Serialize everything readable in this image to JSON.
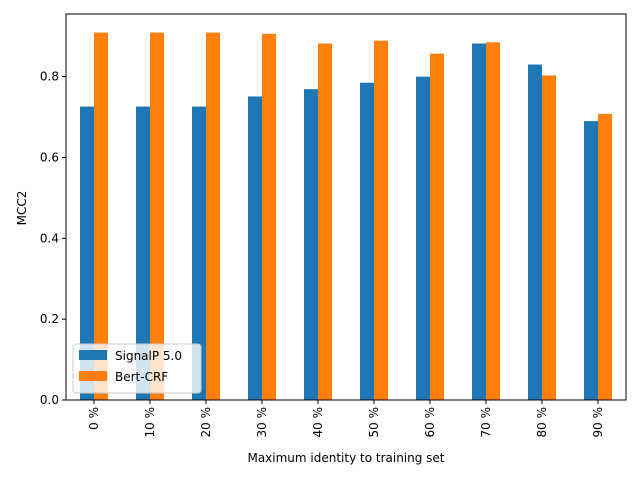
{
  "chart_data": {
    "type": "bar",
    "categories": [
      "0 %",
      "10 %",
      "20 %",
      "30 %",
      "40 %",
      "50 %",
      "60 %",
      "70 %",
      "80 %",
      "90 %"
    ],
    "series": [
      {
        "name": "SignalP 5.0",
        "color": "#1f77b4",
        "values": [
          0.726,
          0.726,
          0.726,
          0.751,
          0.769,
          0.785,
          0.8,
          0.882,
          0.83,
          0.69
        ]
      },
      {
        "name": "Bert-CRF",
        "color": "#ff7f0e",
        "values": [
          0.909,
          0.909,
          0.909,
          0.906,
          0.882,
          0.889,
          0.857,
          0.885,
          0.803,
          0.708
        ]
      }
    ],
    "xlabel": "Maximum identity to training set",
    "ylabel": "MCC2",
    "ylim": [
      0,
      0.955
    ],
    "yticks": [
      0.0,
      0.2,
      0.4,
      0.6,
      0.8
    ],
    "ytick_labels": [
      "0.0",
      "0.2",
      "0.4",
      "0.6",
      "0.8"
    ],
    "grid": false,
    "legend_position": "lower-left"
  }
}
